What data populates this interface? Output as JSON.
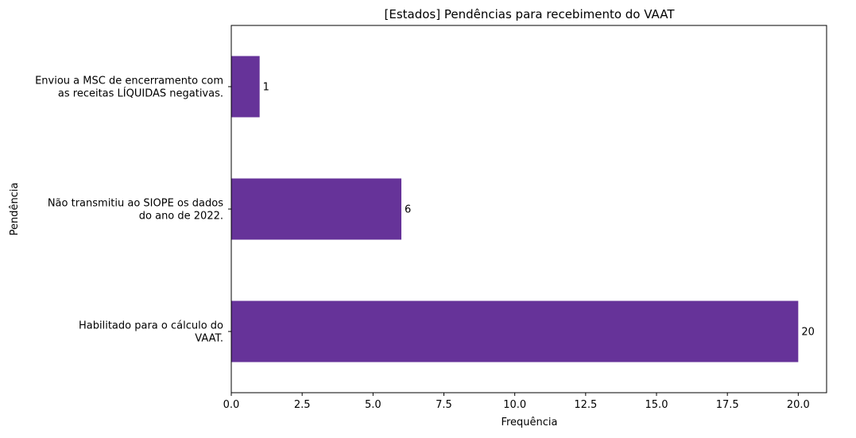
{
  "chart_data": {
    "type": "bar",
    "orientation": "horizontal",
    "title": "[Estados] Pendências para recebimento do VAAT",
    "xlabel": "Frequência",
    "ylabel": "Pendência",
    "categories": [
      [
        "Enviou a MSC de encerramento com",
        "as receitas LÍQUIDAS negativas."
      ],
      [
        "Não transmitiu ao SIOPE os dados",
        "do ano de 2022."
      ],
      [
        "Habilitado para o cálculo do",
        "VAAT."
      ]
    ],
    "values": [
      1,
      6,
      20
    ],
    "data_labels": [
      "1",
      "6",
      "20"
    ],
    "xlim": [
      0,
      21
    ],
    "xticks": [
      0.0,
      2.5,
      5.0,
      7.5,
      10.0,
      12.5,
      15.0,
      17.5,
      20.0
    ],
    "xtick_labels": [
      "0.0",
      "2.5",
      "5.0",
      "7.5",
      "10.0",
      "12.5",
      "15.0",
      "17.5",
      "20.0"
    ],
    "bar_color": "#663399",
    "grid": false,
    "legend": "none"
  }
}
